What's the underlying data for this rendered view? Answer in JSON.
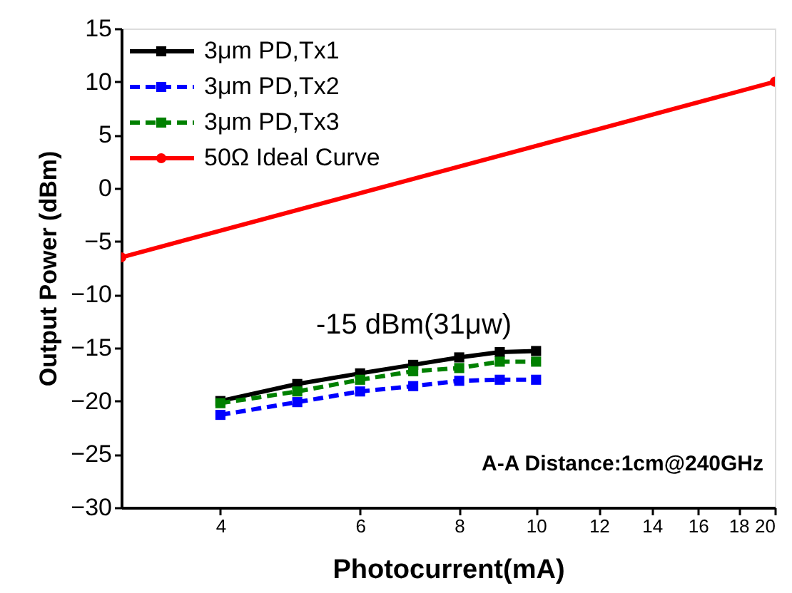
{
  "chart_data": {
    "type": "line",
    "xlabel": "Photocurrent(mA)",
    "ylabel": "Output Power (dBm)",
    "log": "x",
    "xlim": [
      3,
      20
    ],
    "xticks": [
      4,
      6,
      8,
      10,
      12,
      14,
      16,
      18,
      20
    ],
    "ylim": [
      -30,
      15
    ],
    "yticks": [
      -30,
      -25,
      -20,
      -15,
      -10,
      -5,
      0,
      5,
      10,
      15
    ],
    "grid": false,
    "legend": "top left",
    "annotations": [
      "-15 dBm(31μw)",
      "A-A Distance:1cm@240GHz"
    ],
    "series": [
      {
        "name": "3μm PD,Tx1",
        "color": "#000000",
        "marker": "square",
        "line_style": "solid",
        "x": [
          4,
          5,
          6,
          7,
          8,
          9,
          10
        ],
        "values": [
          -20.0,
          -18.4,
          -17.4,
          -16.6,
          -15.9,
          -15.4,
          -15.3
        ]
      },
      {
        "name": "3μm PD,Tx2",
        "color": "#0000ff",
        "marker": "square",
        "line_style": "dashed",
        "x": [
          4,
          5,
          6,
          7,
          8,
          9,
          10
        ],
        "values": [
          -21.3,
          -20.1,
          -19.1,
          -18.6,
          -18.1,
          -18.0,
          -18.0
        ]
      },
      {
        "name": "3μm PD,Tx3",
        "color": "#008000",
        "marker": "square",
        "line_style": "dashed",
        "x": [
          4,
          5,
          6,
          7,
          8,
          9,
          10
        ],
        "values": [
          -20.2,
          -19.1,
          -18.0,
          -17.2,
          -16.9,
          -16.3,
          -16.3
        ]
      },
      {
        "name": "50Ω Ideal Curve",
        "color": "#ff0000",
        "marker": "circle",
        "line_style": "solid",
        "x": [
          3,
          20
        ],
        "values": [
          -6.5,
          10.0
        ]
      }
    ]
  }
}
